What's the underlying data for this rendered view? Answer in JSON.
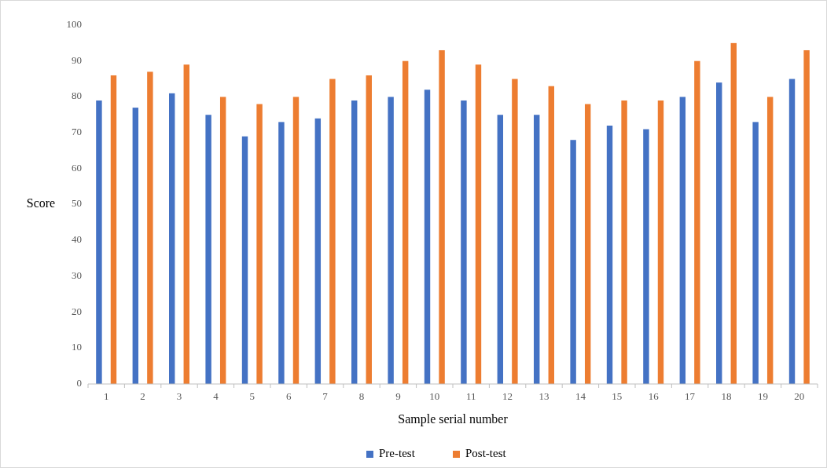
{
  "chart_data": {
    "type": "bar",
    "xlabel": "Sample serial number",
    "ylabel": "Score",
    "categories": [
      "1",
      "2",
      "3",
      "4",
      "5",
      "6",
      "7",
      "8",
      "9",
      "10",
      "11",
      "12",
      "13",
      "14",
      "15",
      "16",
      "17",
      "18",
      "19",
      "20"
    ],
    "series": [
      {
        "name": "Pre-test",
        "color": "#4472c4",
        "values": [
          79,
          77,
          81,
          75,
          69,
          73,
          74,
          79,
          80,
          82,
          79,
          75,
          75,
          68,
          72,
          71,
          80,
          84,
          73,
          85
        ]
      },
      {
        "name": "Post-test",
        "color": "#ed7d31",
        "values": [
          86,
          87,
          89,
          80,
          78,
          80,
          85,
          86,
          90,
          93,
          89,
          85,
          83,
          78,
          79,
          79,
          90,
          95,
          80,
          93
        ]
      }
    ],
    "ylim": [
      0,
      100
    ],
    "yticks": [
      0,
      10,
      20,
      30,
      40,
      50,
      60,
      70,
      80,
      90,
      100
    ],
    "legend": "bottom"
  }
}
